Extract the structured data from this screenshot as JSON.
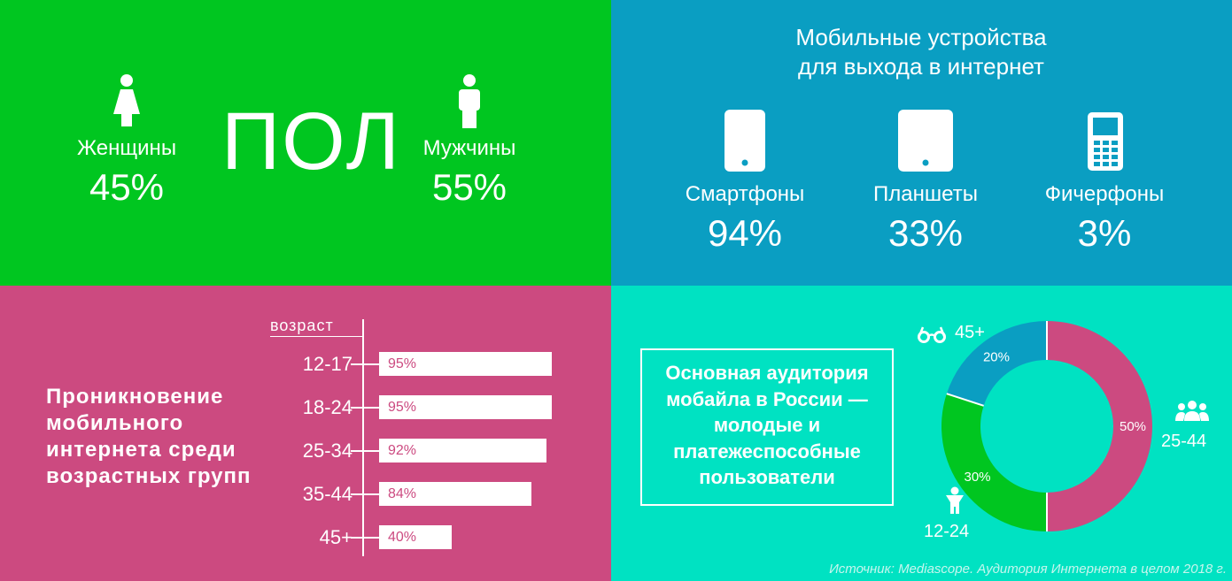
{
  "gender": {
    "title": "ПОЛ",
    "women": {
      "label": "Женщины",
      "value": "45%"
    },
    "men": {
      "label": "Мужчины",
      "value": "55%"
    }
  },
  "devices": {
    "title_line1": "Мобильные устройства",
    "title_line2": "для выхода в интернет",
    "items": [
      {
        "label": "Смартфоны",
        "value": "94%",
        "icon": "smartphone-icon"
      },
      {
        "label": "Планшеты",
        "value": "33%",
        "icon": "tablet-icon"
      },
      {
        "label": "Фичерфоны",
        "value": "3%",
        "icon": "feature-phone-icon"
      }
    ]
  },
  "age": {
    "title_lines": [
      "Проникновение",
      "мобильного",
      "интернета среди",
      "возрастных групп"
    ],
    "axis_label": "возраст"
  },
  "audience": {
    "text_lines": [
      "Основная аудитория",
      "мобайла в России —",
      "молодые и",
      "платежеспособные",
      "пользователи"
    ],
    "source": "Источник: Mediascope. Аудитория Интернета в целом 2018 г."
  },
  "chart_data": [
    {
      "type": "bar",
      "orientation": "horizontal",
      "categories": [
        "12-17",
        "18-24",
        "25-34",
        "35-44",
        "45+"
      ],
      "values": [
        95,
        95,
        92,
        84,
        40
      ],
      "value_labels": [
        "95%",
        "95%",
        "92%",
        "84%",
        "40%"
      ],
      "ylabel": "возраст",
      "xlim": [
        0,
        100
      ],
      "color": "#ffffff"
    },
    {
      "type": "pie",
      "variant": "donut",
      "categories": [
        "25-44",
        "12-24",
        "45+"
      ],
      "values": [
        50,
        30,
        20
      ],
      "value_labels": [
        "50%",
        "30%",
        "20%"
      ],
      "colors": [
        "#cc4a80",
        "#00c620",
        "#0a9ec2"
      ]
    }
  ]
}
